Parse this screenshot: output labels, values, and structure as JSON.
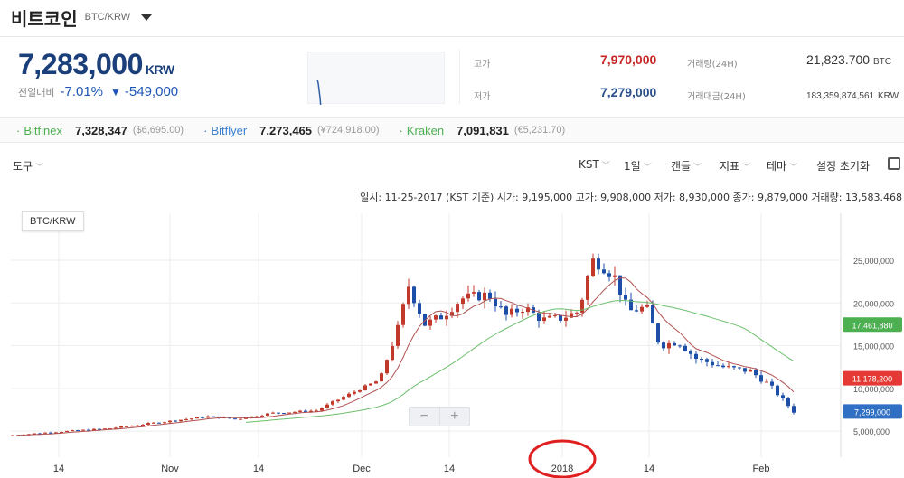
{
  "header": {
    "coin_name": "비트코인",
    "pair": "BTC/KRW"
  },
  "price": {
    "current": "7,283,000",
    "unit": "KRW",
    "change_label": "전일대비",
    "change_pct": "-7.01%",
    "change_arrow": "▼",
    "change_amt": "-549,000"
  },
  "stats": {
    "high_label": "고가",
    "high": "7,970,000",
    "low_label": "저가",
    "low": "7,279,000",
    "volume_label": "거래량(24H)",
    "volume": "21,823.700",
    "volume_unit": "BTC",
    "value_label": "거래대금(24H)",
    "value": "183,359,874,561",
    "value_unit": "KRW"
  },
  "exchanges": [
    {
      "name": "Bitfinex",
      "price": "7,328,347",
      "usd": "($6,695.00)",
      "color": "#4caf50"
    },
    {
      "name": "Bitflyer",
      "price": "7,273,465",
      "usd": "(¥724,918.00)",
      "color": "#3a7fd0"
    },
    {
      "name": "Kraken",
      "price": "7,091,831",
      "usd": "(€5,231.70)",
      "color": "#4caf50"
    }
  ],
  "toolbar": {
    "tools": "도구",
    "timezone": "KST",
    "interval": "1일",
    "candle": "캔들",
    "indicator": "지표",
    "theme": "테마",
    "reset": "설정 초기화"
  },
  "ohlc_line": "일시: 11-25-2017 (KST 기준) 시가: 9,195,000 고가: 9,908,000 저가: 8,930,000 종가: 9,879,000 거래량: 13,583.468",
  "chart_data": {
    "type": "candlestick",
    "title": "BTC/KRW",
    "x_ticks": [
      "14",
      "Nov",
      "14",
      "Dec",
      "14",
      "2018",
      "14",
      "Feb"
    ],
    "y_ticks": [
      "5,000,000",
      "10,000,000",
      "15,000,000",
      "20,000,000",
      "25,000,000"
    ],
    "ylim": [
      3000000,
      30500000
    ],
    "grid": true,
    "price_labels": [
      {
        "value": 17461880,
        "text": "17,461,880",
        "color": "#4caf50"
      },
      {
        "value": 11178200,
        "text": "11,178,200",
        "color": "#e53935"
      },
      {
        "value": 7299000,
        "text": "7,299,000",
        "color": "#2f6fc4"
      }
    ],
    "highlight_tick": "2018",
    "up_color": "#c0392b",
    "down_color": "#1d4fa8",
    "ma_short_color": "#b05050",
    "ma_long_color": "#6cbf6c"
  },
  "zoom": {
    "minus": "−",
    "plus": "+"
  }
}
